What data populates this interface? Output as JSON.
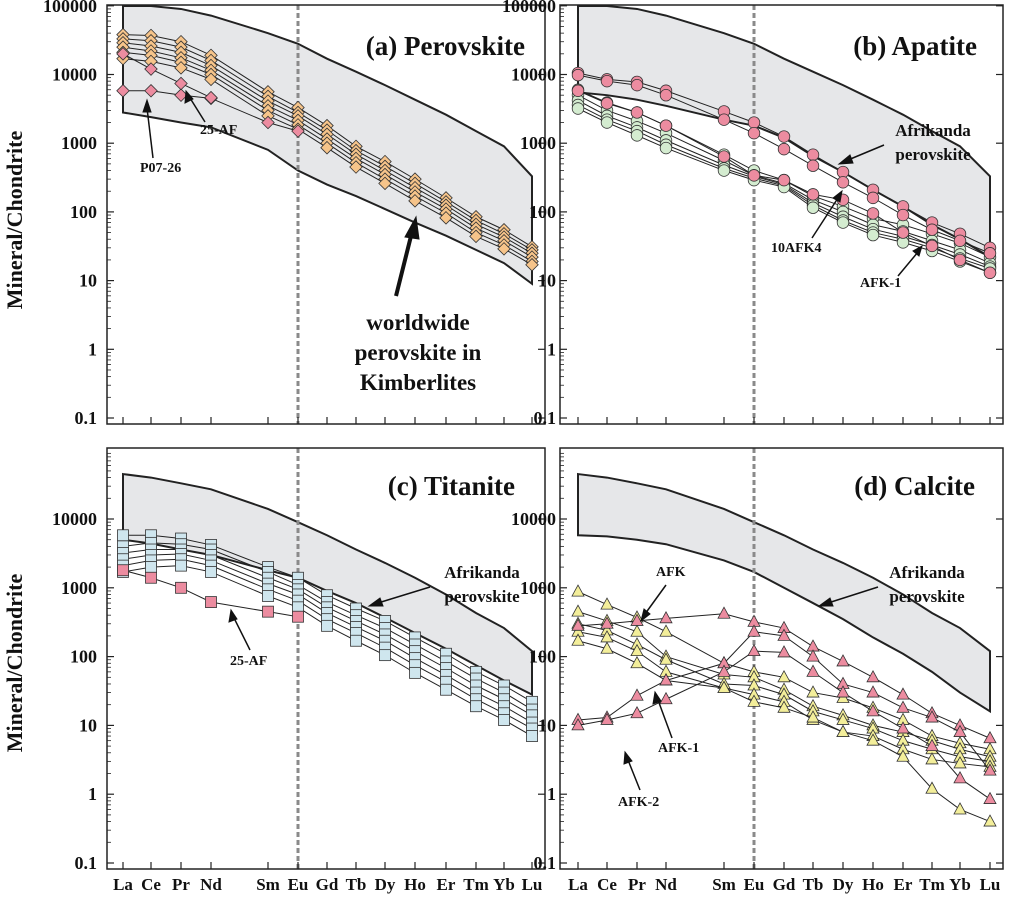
{
  "elements": [
    "La",
    "Ce",
    "Pr",
    "Nd",
    "Sm",
    "Eu",
    "Gd",
    "Tb",
    "Dy",
    "Ho",
    "Er",
    "Tm",
    "Yb",
    "Lu"
  ],
  "ylabel": "Mineral/Chondrite",
  "colors": {
    "envelope_fill": "#e6e7e9",
    "perovskite_marker": "#f6c48a",
    "pink_marker": "#ec8ca0",
    "apatite_green": "#d4ecd0",
    "titanite_blue": "#cfe6ee",
    "calcite_yellow": "#f3ee9a",
    "eu_line": "#8a8a8a"
  },
  "chart_data": [
    {
      "id": "a",
      "type": "line",
      "title": "(a) Perovskite",
      "xlabel": "",
      "ylabel": "Mineral/Chondrite",
      "yscale": "log",
      "ylim": [
        0.1,
        100000
      ],
      "yticks": [
        "0.1",
        "1",
        "10",
        "100",
        "1000",
        "10000",
        "100000"
      ],
      "envelope": {
        "upper": [
          110000,
          110000,
          90000,
          72000,
          40000,
          28000,
          17000,
          11000,
          7000,
          4300,
          2600,
          1500,
          900,
          330
        ],
        "lower": [
          2800,
          2400,
          2000,
          1700,
          800,
          400,
          250,
          170,
          110,
          70,
          45,
          28,
          18,
          9
        ]
      },
      "groups": [
        {
          "name": "",
          "marker": "diamond",
          "color": "#f6c48a",
          "series": [
            [
              38000,
              37000,
              30000,
              19000,
              5600,
              3300,
              1800,
              900,
              540,
              300,
              160,
              85,
              55,
              31
            ],
            [
              33000,
              31000,
              25000,
              16000,
              4800,
              2800,
              1550,
              780,
              460,
              260,
              140,
              75,
              48,
              28
            ],
            [
              29000,
              26000,
              21000,
              13500,
              4100,
              2500,
              1350,
              690,
              400,
              225,
              125,
              66,
              43,
              25
            ],
            [
              25000,
              22000,
              17500,
              11500,
              3500,
              2150,
              1150,
              600,
              350,
              195,
              110,
              58,
              38,
              22
            ],
            [
              21000,
              19000,
              15000,
              10000,
              3000,
              1850,
              1000,
              520,
              300,
              170,
              96,
              50,
              33,
              19
            ],
            [
              17000,
              15500,
              12500,
              8500,
              2500,
              1600,
              860,
              450,
              260,
              145,
              82,
              44,
              29,
              17
            ]
          ]
        }
      ],
      "pink": [
        {
          "name": "P07-26",
          "values": [
            5800,
            5800,
            5000,
            4500,
            2000,
            1500
          ]
        },
        {
          "name": "25-AF",
          "values": [
            20000,
            12000,
            7400,
            4600
          ]
        }
      ],
      "annotations": [
        "P07-26",
        "25-AF",
        "worldwide",
        "perovskite in",
        "Kimberlites"
      ]
    },
    {
      "id": "b",
      "type": "line",
      "title": "(b) Apatite",
      "xlabel": "",
      "ylabel": "",
      "yscale": "log",
      "ylim": [
        0.1,
        100000
      ],
      "yticks": [
        "0.1",
        "1",
        "10",
        "100",
        "1000",
        "10000",
        "100000"
      ],
      "envelope": {
        "upper": [
          110000,
          110000,
          90000,
          72000,
          40000,
          28000,
          17000,
          11000,
          7000,
          4300,
          2600,
          1500,
          900,
          330
        ],
        "lower": [
          5500,
          5000,
          4300,
          3500,
          2200,
          1800,
          1200,
          650,
          380,
          210,
          120,
          65,
          40,
          22
        ]
      },
      "groups": [
        {
          "name": "AFK-1",
          "marker": "circle",
          "color": "#d4ecd0",
          "series": [
            [
              6000,
              3900,
              2800,
              1800,
              680,
              400,
              290,
              170,
              120,
              80,
              65,
              48,
              35,
              22
            ],
            [
              5000,
              3000,
              2100,
              1400,
              560,
              340,
              260,
              150,
              100,
              65,
              52,
              38,
              28,
              18
            ],
            [
              4200,
              2500,
              1700,
              1100,
              480,
              330,
              250,
              135,
              85,
              56,
              44,
              33,
              24,
              16
            ],
            [
              3600,
              2200,
              1500,
              950,
              430,
              310,
              240,
              125,
              75,
              50,
              40,
              30,
              21,
              15
            ],
            [
              3200,
              2000,
              1300,
              850,
              400,
              290,
              230,
              115,
              70,
              46,
              36,
              27,
              19,
              13
            ]
          ]
        }
      ],
      "pink": [
        {
          "name": "",
          "values": [
            10500,
            8500,
            7800,
            5800,
            2900,
            2000,
            1250,
            680,
            380,
            210,
            120,
            70,
            48,
            30
          ]
        },
        {
          "name": "",
          "values": [
            9800,
            8000,
            7000,
            5000,
            2200,
            1400,
            820,
            470,
            270,
            160,
            90,
            55,
            38,
            25
          ]
        },
        {
          "name": "10AFK4",
          "values": [
            5800,
            3800,
            2800,
            1800,
            640,
            340,
            290,
            180,
            150,
            95,
            50,
            32,
            20,
            13
          ]
        }
      ],
      "annotations": [
        "Afrikanda",
        "perovskite",
        "10AFK4",
        "AFK-1"
      ]
    },
    {
      "id": "c",
      "type": "line",
      "title": "(c) Titanite",
      "xlabel": "La Ce Pr Nd Sm Eu Gd Tb Dy Ho Er Tm Yb Lu",
      "ylabel": "Mineral/Chondrite",
      "yscale": "log",
      "ylim": [
        0.1,
        50000
      ],
      "yticks": [
        "0.1",
        "1",
        "10",
        "100",
        "1000",
        "10000"
      ],
      "envelope": {
        "upper": [
          45000,
          40000,
          33000,
          27000,
          14000,
          9000,
          5800,
          3600,
          2300,
          1400,
          800,
          430,
          260,
          120
        ],
        "lower": [
          5000,
          4400,
          3600,
          3000,
          1800,
          1400,
          900,
          600,
          370,
          220,
          130,
          75,
          45,
          28
        ]
      },
      "groups": [
        {
          "name": "",
          "marker": "square",
          "color": "#cfe6ee",
          "series": [
            [
              5800,
              5800,
              5200,
              4200,
              2000,
              1400,
              780,
              500,
              330,
              190,
              110,
              60,
              38,
              22
            ],
            [
              4000,
              4500,
              4300,
              3600,
              1700,
              1100,
              620,
              400,
              260,
              150,
              85,
              48,
              30,
              17
            ],
            [
              3200,
              3600,
              3600,
              3000,
              1400,
              950,
              520,
              330,
              210,
              120,
              68,
              38,
              24,
              14
            ],
            [
              2600,
              3000,
              3100,
              2500,
              1150,
              800,
              430,
              270,
              170,
              95,
              54,
              30,
              19,
              11
            ],
            [
              2100,
              2500,
              2600,
              2100,
              950,
              650,
              350,
              220,
              135,
              75,
              43,
              24,
              15,
              9
            ],
            [
              1700,
              2000,
              2100,
              1700,
              760,
              520,
              280,
              170,
              105,
              58,
              33,
              19,
              12,
              7
            ]
          ]
        }
      ],
      "pink": [
        {
          "name": "25-AF",
          "values": [
            1800,
            1400,
            1000,
            620,
            450,
            380
          ]
        }
      ],
      "annotations": [
        "Afrikanda",
        "perovskite",
        "25-AF"
      ]
    },
    {
      "id": "d",
      "type": "line",
      "title": "(d) Calcite",
      "xlabel": "La Ce Pr Nd Sm Eu Gd Tb Dy Ho Er Tm Yb Lu",
      "ylabel": "",
      "yscale": "log",
      "ylim": [
        0.1,
        50000
      ],
      "yticks": [
        "0.1",
        "1",
        "10",
        "100",
        "1000",
        "10000"
      ],
      "envelope": {
        "upper": [
          45000,
          40000,
          33000,
          27000,
          14000,
          9000,
          5800,
          3600,
          2300,
          1400,
          800,
          430,
          260,
          120
        ],
        "lower": [
          5800,
          5600,
          5000,
          4300,
          2500,
          1700,
          1000,
          600,
          350,
          190,
          110,
          60,
          30,
          16
        ]
      },
      "groups": [
        {
          "name": "",
          "marker": "triangle",
          "color": "#f3ee9a",
          "series": [
            [
              880,
              570,
              370,
              230,
              80,
              60,
              50,
              30,
              25,
              18,
              12,
              7,
              5.5,
              4.5
            ],
            [
              450,
              330,
              230,
              100,
              55,
              50,
              33,
              19,
              14,
              10,
              8,
              6,
              4.5,
              3.5
            ],
            [
              300,
              240,
              150,
              90,
              40,
              38,
              28,
              16,
              12,
              9,
              6,
              4.5,
              3.5,
              3
            ],
            [
              230,
              190,
              120,
              60,
              35,
              28,
              22,
              12,
              8,
              7,
              4.5,
              3.2,
              2.8,
              2.5
            ],
            [
              170,
              130,
              80,
              45,
              35,
              22,
              18,
              13,
              8,
              6,
              3.5,
              1.2,
              0.6,
              0.4
            ]
          ]
        }
      ],
      "pink": [
        {
          "name": "AFK",
          "values": [
            280,
            300,
            330,
            360,
            420,
            320,
            260,
            140,
            85,
            50,
            28,
            15,
            10,
            6.5
          ]
        },
        {
          "name": "AFK-1",
          "values": [
            12,
            13,
            27,
            45,
            80,
            230,
            200,
            100,
            40,
            30,
            18,
            13,
            8,
            2.2
          ]
        },
        {
          "name": "AFK-2",
          "values": [
            10,
            12,
            15,
            24,
            60,
            120,
            115,
            60,
            30,
            16,
            9,
            5,
            1.7,
            0.85
          ]
        }
      ],
      "annotations": [
        "AFK",
        "Afrikanda",
        "perovskite",
        "AFK-1",
        "AFK-2"
      ]
    }
  ]
}
